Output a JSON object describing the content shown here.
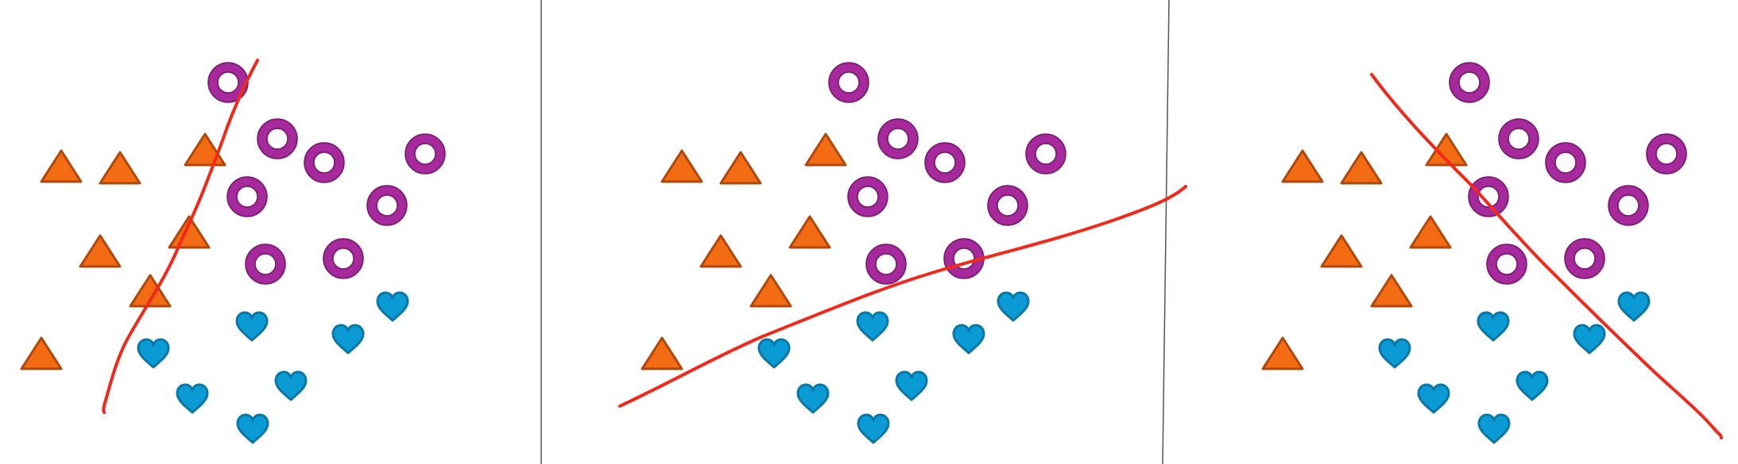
{
  "colors": {
    "background": "#ffffff",
    "divider": "#555555",
    "triangle_fill": "#f36b12",
    "triangle_stroke": "#b0470a",
    "ring_fill": "#a62a9b",
    "ring_stroke": "#7b1a72",
    "heart_fill": "#0a9bd4",
    "heart_stroke": "#0877a6",
    "boundary_line": "#f2281a"
  },
  "shapes": {
    "triangle": "triangle-icon",
    "ring": "ring-icon",
    "heart": "heart-icon"
  },
  "panels": [
    {
      "id": "panel-1",
      "boundary": "steep-line"
    },
    {
      "id": "panel-2",
      "boundary": "shallow-line"
    },
    {
      "id": "panel-3",
      "boundary": "diagonal-line"
    }
  ]
}
